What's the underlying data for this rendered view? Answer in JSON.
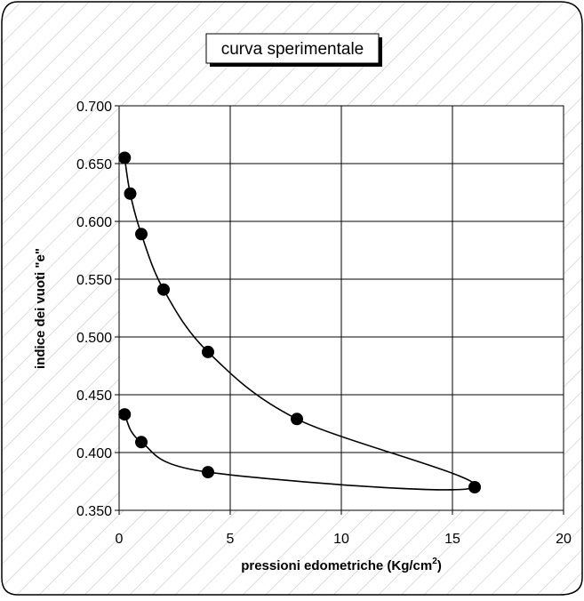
{
  "chart_data": {
    "type": "scatter",
    "title": "curva sperimentale",
    "xlabel": "pressioni edometriche (Kg/cm",
    "xlabel_superscript": "2",
    "xlabel_suffix": ")",
    "ylabel": "indice dei vuoti \"e\"",
    "xlim": [
      0,
      20
    ],
    "ylim": [
      0.35,
      0.7
    ],
    "x_ticks": [
      0,
      5,
      10,
      15,
      20
    ],
    "x_tick_labels": [
      "0",
      "5",
      "10",
      "15",
      "20"
    ],
    "y_ticks": [
      0.35,
      0.4,
      0.45,
      0.5,
      0.55,
      0.6,
      0.65,
      0.7
    ],
    "y_tick_labels": [
      "0.350",
      "0.400",
      "0.450",
      "0.500",
      "0.550",
      "0.600",
      "0.650",
      "0.700"
    ],
    "grid": true,
    "legend": "none",
    "series": [
      {
        "points": [
          {
            "x": 0.25,
            "y": 0.655
          },
          {
            "x": 0.5,
            "y": 0.624
          },
          {
            "x": 1,
            "y": 0.589
          },
          {
            "x": 2,
            "y": 0.541
          },
          {
            "x": 4,
            "y": 0.487
          },
          {
            "x": 8,
            "y": 0.429
          },
          {
            "x": 16,
            "y": 0.37
          },
          {
            "x": 4,
            "y": 0.383
          },
          {
            "x": 1,
            "y": 0.409
          },
          {
            "x": 0.25,
            "y": 0.433
          }
        ]
      }
    ],
    "colors": {
      "background": "#ffffff",
      "plot_background": "#ffffff",
      "hatch": "#c8c8c8",
      "grid": "#000000",
      "marker": "#000000",
      "line": "#000000"
    }
  }
}
